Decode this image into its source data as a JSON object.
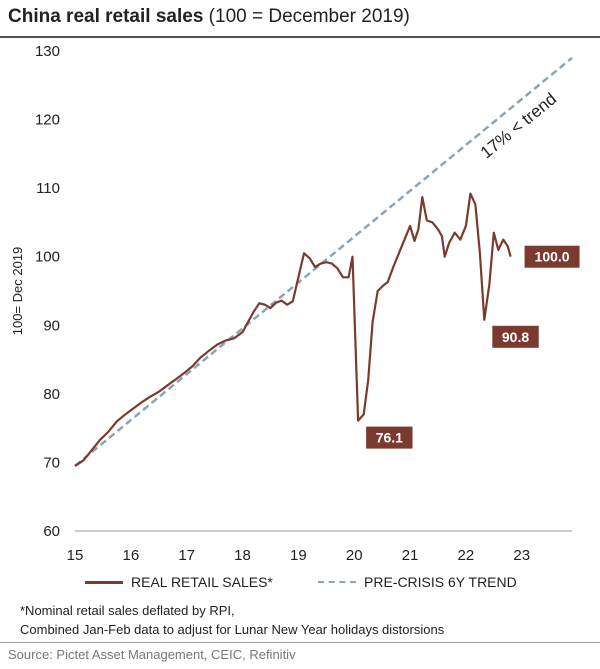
{
  "title": {
    "bold": "China real retail sales",
    "rest": " (100 = December 2019)"
  },
  "chart_data": {
    "type": "line",
    "ylabel": "100= Dec 2019",
    "xlabel": "",
    "xlim": [
      15,
      23.9
    ],
    "ylim": [
      60,
      130
    ],
    "x_ticks": [
      "15",
      "16",
      "17",
      "18",
      "19",
      "20",
      "21",
      "22",
      "23"
    ],
    "y_ticks": [
      "60",
      "70",
      "80",
      "90",
      "100",
      "110",
      "120",
      "130"
    ],
    "grid": false,
    "legend_position": "bottom",
    "series": [
      {
        "name": "REAL RETAIL SALES*",
        "color": "#7a3b2e",
        "style": "solid",
        "points": [
          [
            15.0,
            69.5
          ],
          [
            15.15,
            70.3
          ],
          [
            15.3,
            71.8
          ],
          [
            15.45,
            73.3
          ],
          [
            15.6,
            74.5
          ],
          [
            15.75,
            76.0
          ],
          [
            15.9,
            77.0
          ],
          [
            16.05,
            77.9
          ],
          [
            16.2,
            78.8
          ],
          [
            16.35,
            79.6
          ],
          [
            16.5,
            80.3
          ],
          [
            16.65,
            81.2
          ],
          [
            16.8,
            82.1
          ],
          [
            16.95,
            83.0
          ],
          [
            17.1,
            84.0
          ],
          [
            17.25,
            85.3
          ],
          [
            17.4,
            86.3
          ],
          [
            17.55,
            87.2
          ],
          [
            17.7,
            87.8
          ],
          [
            17.85,
            88.1
          ],
          [
            18.0,
            89.0
          ],
          [
            18.1,
            90.5
          ],
          [
            18.2,
            92.0
          ],
          [
            18.3,
            93.2
          ],
          [
            18.4,
            93.0
          ],
          [
            18.5,
            92.5
          ],
          [
            18.6,
            93.3
          ],
          [
            18.7,
            93.6
          ],
          [
            18.8,
            93.0
          ],
          [
            18.9,
            93.5
          ],
          [
            19.0,
            97.0
          ],
          [
            19.1,
            100.5
          ],
          [
            19.2,
            99.8
          ],
          [
            19.3,
            98.5
          ],
          [
            19.4,
            99.0
          ],
          [
            19.5,
            99.2
          ],
          [
            19.6,
            99.0
          ],
          [
            19.7,
            98.3
          ],
          [
            19.8,
            97.0
          ],
          [
            19.9,
            97.0
          ],
          [
            19.97,
            100.0
          ],
          [
            20.07,
            76.1
          ],
          [
            20.17,
            77.0
          ],
          [
            20.25,
            82.0
          ],
          [
            20.33,
            90.5
          ],
          [
            20.42,
            95.0
          ],
          [
            20.52,
            95.8
          ],
          [
            20.6,
            96.3
          ],
          [
            20.7,
            98.5
          ],
          [
            20.8,
            100.5
          ],
          [
            20.9,
            102.5
          ],
          [
            21.0,
            104.5
          ],
          [
            21.08,
            102.3
          ],
          [
            21.15,
            104.0
          ],
          [
            21.22,
            108.7
          ],
          [
            21.3,
            105.3
          ],
          [
            21.4,
            105.0
          ],
          [
            21.5,
            104.0
          ],
          [
            21.57,
            103.0
          ],
          [
            21.62,
            100.0
          ],
          [
            21.7,
            102.0
          ],
          [
            21.8,
            103.5
          ],
          [
            21.9,
            102.5
          ],
          [
            22.0,
            104.5
          ],
          [
            22.08,
            109.2
          ],
          [
            22.17,
            107.6
          ],
          [
            22.25,
            100.5
          ],
          [
            22.33,
            90.8
          ],
          [
            22.42,
            96.0
          ],
          [
            22.5,
            103.5
          ],
          [
            22.58,
            101.0
          ],
          [
            22.67,
            102.5
          ],
          [
            22.75,
            101.5
          ],
          [
            22.8,
            100.0
          ]
        ]
      },
      {
        "name": "PRE-CRISIS 6Y TREND",
        "color": "#8ca3bd",
        "style": "dashed",
        "points": [
          [
            15.0,
            69.5
          ],
          [
            23.9,
            129.0
          ]
        ]
      }
    ],
    "data_labels": [
      {
        "text": "100.0",
        "x": 22.8,
        "y": 100.0,
        "side": "right"
      },
      {
        "text": "90.8",
        "x": 22.33,
        "y": 90.8,
        "side": "below-right"
      },
      {
        "text": "76.1",
        "x": 20.07,
        "y": 76.1,
        "side": "below-right"
      }
    ],
    "annotations": [
      {
        "text": "17% < trend"
      }
    ]
  },
  "footnotes": [
    "*Nominal retail sales deflated by RPI,",
    "Combined Jan-Feb data to adjust for Lunar New Year holidays distorsions"
  ],
  "source": "Source: Pictet Asset Management, CEIC, Refinitiv"
}
